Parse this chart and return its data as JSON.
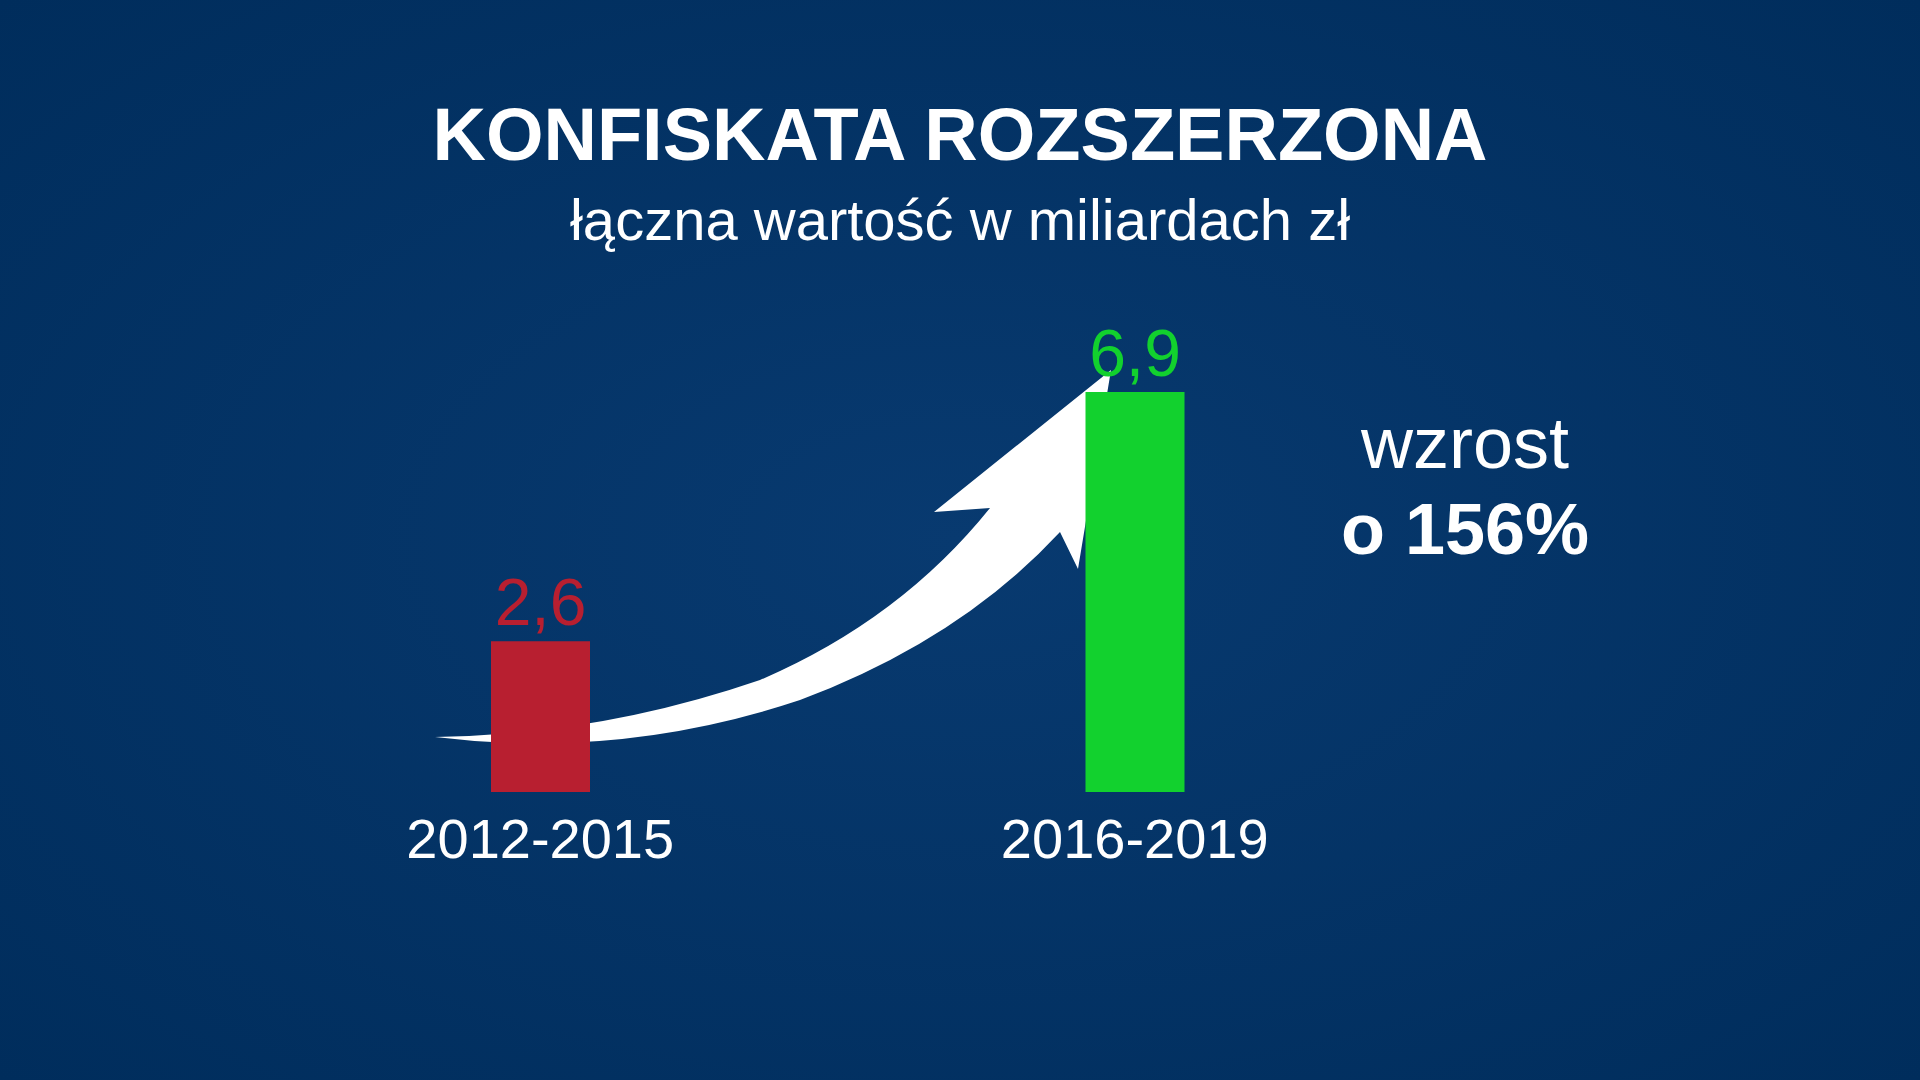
{
  "chart_data": {
    "type": "bar",
    "title": "KONFISKATA ROZSZERZONA",
    "subtitle": "łączna wartość w miliardach zł",
    "categories": [
      "2012-2015",
      "2016-2019"
    ],
    "values": [
      2.6,
      6.9
    ],
    "colors": [
      "#b81f30",
      "#12d12e"
    ],
    "value_labels": [
      "2,6",
      "6,9"
    ],
    "annotations": [
      "wzrost",
      "o 156%"
    ]
  }
}
